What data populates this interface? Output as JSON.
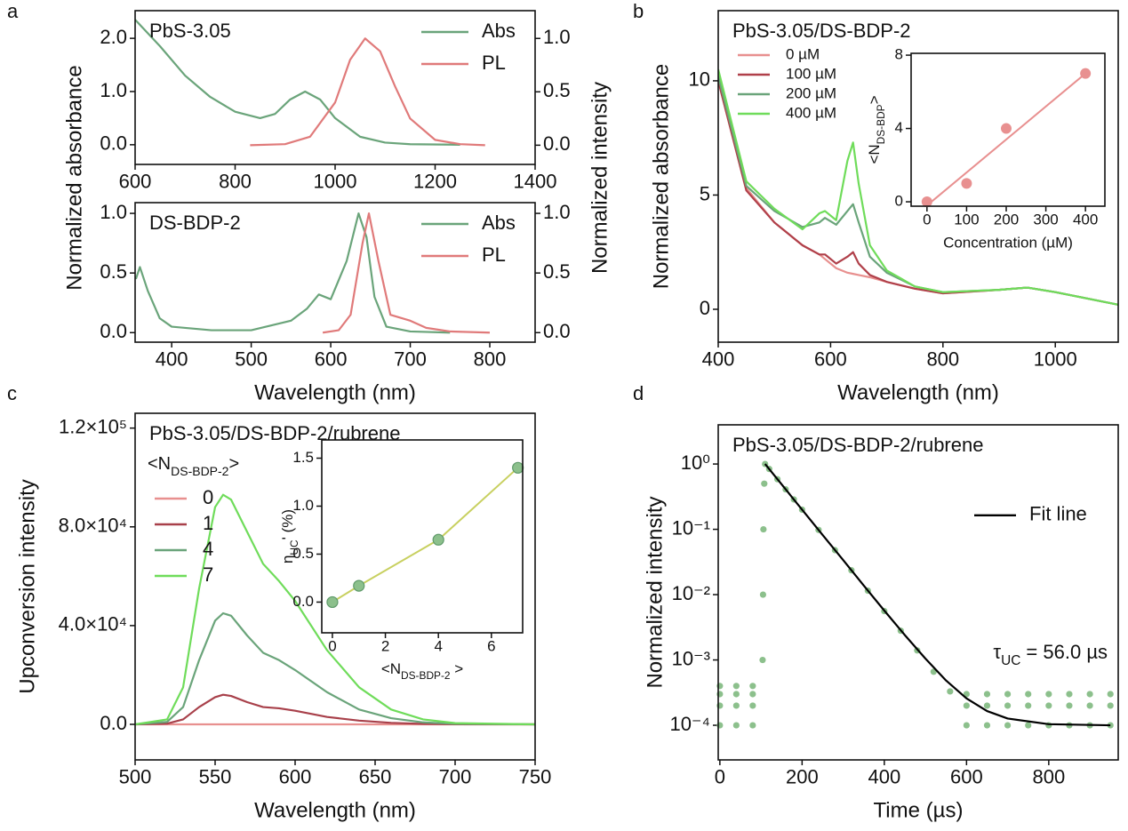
{
  "chart_data": [
    {
      "type": "line",
      "panel": "a",
      "label": "PbS-3.05",
      "ylabel": "Normalized absorbance",
      "y2label": "Normalized intensity",
      "xlim": [
        600,
        1400
      ],
      "xticks": [
        600,
        800,
        1000,
        1200,
        1400
      ],
      "ylim": [
        -0.37,
        2.52
      ],
      "yticks": [
        {
          "value": 0,
          "label": "0.0"
        },
        {
          "value": 1,
          "label": "1.0"
        },
        {
          "value": 2,
          "label": "2.0"
        }
      ],
      "y2lim": [
        -0.18,
        1.26
      ],
      "y2ticks": [
        {
          "value": 0,
          "label": "0.0"
        },
        0.5,
        {
          "value": 1,
          "label": "1.0"
        }
      ],
      "legend": "upper right",
      "series": [
        {
          "name": "Abs",
          "color": "#6aa47a",
          "x": [
            600,
            650,
            700,
            750,
            800,
            850,
            880,
            910,
            940,
            970,
            1000,
            1050,
            1100,
            1150,
            1250
          ],
          "values": [
            2.35,
            1.85,
            1.3,
            0.9,
            0.62,
            0.5,
            0.58,
            0.85,
            1.0,
            0.85,
            0.5,
            0.15,
            0.04,
            0.01,
            0.0
          ]
        },
        {
          "name": "PL",
          "color": "#e07a7a",
          "axis": "y2",
          "x": [
            830,
            900,
            950,
            1000,
            1030,
            1060,
            1090,
            1120,
            1150,
            1200,
            1250,
            1300
          ],
          "values": [
            0,
            0.01,
            0.08,
            0.4,
            0.8,
            1.0,
            0.88,
            0.55,
            0.25,
            0.05,
            0.01,
            0
          ]
        }
      ]
    },
    {
      "type": "line",
      "label": "DS-BDP-2",
      "xlabel": "Wavelength (nm)",
      "xlim": [
        354,
        857
      ],
      "xticks": [
        400,
        500,
        600,
        700,
        800
      ],
      "ylim": [
        -0.08,
        1.09
      ],
      "yticks": [
        {
          "value": 0,
          "label": "0.0"
        },
        0.5,
        {
          "value": 1,
          "label": "1.0"
        }
      ],
      "y2lim": [
        -0.08,
        1.09
      ],
      "y2ticks": [
        {
          "value": 0,
          "label": "0.0"
        },
        0.5,
        {
          "value": 1,
          "label": "1.0"
        }
      ],
      "legend": "upper right",
      "series": [
        {
          "name": "Abs",
          "color": "#6aa47a",
          "x": [
            355,
            360,
            370,
            385,
            400,
            450,
            500,
            550,
            570,
            585,
            600,
            620,
            635,
            645,
            655,
            670,
            700,
            750
          ],
          "values": [
            0.45,
            0.55,
            0.35,
            0.12,
            0.05,
            0.02,
            0.02,
            0.1,
            0.2,
            0.32,
            0.28,
            0.6,
            1.0,
            0.8,
            0.3,
            0.05,
            0.01,
            0
          ]
        },
        {
          "name": "PL",
          "color": "#e07a7a",
          "axis": "y2",
          "x": [
            590,
            610,
            625,
            640,
            648,
            660,
            675,
            700,
            720,
            750,
            800
          ],
          "values": [
            0,
            0.02,
            0.15,
            0.75,
            1.0,
            0.6,
            0.15,
            0.1,
            0.04,
            0.01,
            0
          ]
        }
      ]
    },
    {
      "type": "line",
      "panel": "b",
      "label": "PbS-3.05/DS-BDP-2",
      "xlabel": "Wavelength (nm)",
      "ylabel": "Normalized absorbance",
      "xlim": [
        400,
        1112
      ],
      "xticks": [
        400,
        600,
        800,
        1000
      ],
      "ylim": [
        -1.44,
        13.07
      ],
      "yticks": [
        0,
        5,
        10
      ],
      "legend": "upper left",
      "x": [
        400,
        450,
        500,
        550,
        580,
        590,
        610,
        630,
        640,
        650,
        670,
        700,
        750,
        800,
        900,
        950,
        1000,
        1112
      ],
      "series": [
        {
          "name": "0 µM",
          "color": "#e8908f",
          "values": [
            10,
            5.3,
            3.8,
            2.8,
            2.4,
            2.2,
            1.8,
            1.6,
            1.55,
            1.5,
            1.4,
            1.2,
            0.9,
            0.7,
            0.85,
            0.95,
            0.75,
            0.2
          ]
        },
        {
          "name": "100 µM",
          "color": "#b0404a",
          "values": [
            10,
            5.2,
            3.8,
            2.8,
            2.4,
            2.4,
            2.0,
            2.3,
            2.5,
            2.0,
            1.5,
            1.2,
            0.9,
            0.7,
            0.85,
            0.95,
            0.75,
            0.2
          ]
        },
        {
          "name": "200 µM",
          "color": "#6aa47a",
          "values": [
            10.2,
            5.4,
            4.3,
            3.6,
            3.8,
            4.0,
            3.7,
            4.3,
            4.6,
            3.8,
            2.3,
            1.6,
            1.0,
            0.75,
            0.85,
            0.95,
            0.75,
            0.2
          ]
        },
        {
          "name": "400 µM",
          "color": "#6fdc5a",
          "values": [
            10.5,
            5.6,
            4.4,
            3.5,
            4.2,
            4.3,
            3.9,
            6.5,
            7.3,
            5.5,
            2.8,
            1.7,
            1.0,
            0.75,
            0.85,
            0.95,
            0.75,
            0.2
          ]
        }
      ]
    },
    {
      "type": "scatter",
      "xlabel": "Concentration (µM)",
      "ylabel": [
        "<N",
        "DS-BDP",
        ">"
      ],
      "xlim": [
        -40,
        449
      ],
      "xticks": [
        0,
        100,
        200,
        300,
        400
      ],
      "ylim": [
        -0.24,
        8.1
      ],
      "yticks": [
        0,
        4,
        8
      ],
      "series": [
        {
          "color": "#e89090",
          "style": "line",
          "x": [
            0,
            400
          ],
          "values": [
            -0.2,
            7.0
          ]
        },
        {
          "color": "#e89090",
          "style": "markers",
          "x": [
            0,
            100,
            200,
            400
          ],
          "values": [
            0,
            1,
            4,
            7
          ]
        }
      ]
    },
    {
      "type": "line",
      "panel": "c",
      "label": "PbS-3.05/DS-BDP-2/rubrene",
      "legend_title": [
        "<N",
        "DS-BDP-2",
        ">"
      ],
      "xlabel": "Wavelength (nm)",
      "ylabel": "Upconversion intensity",
      "xlim": [
        500,
        750
      ],
      "xticks": [
        500,
        550,
        600,
        650,
        700,
        750
      ],
      "ylim": [
        -14400,
        126000
      ],
      "yticks": [
        {
          "value": 0,
          "label": "0.0"
        },
        {
          "value": 40000,
          "label": "4.0×10⁴"
        },
        {
          "value": 80000,
          "label": "8.0×10⁴"
        },
        {
          "value": 120000,
          "label": "1.2×10⁵"
        }
      ],
      "legend": "upper left",
      "x": [
        500,
        520,
        530,
        540,
        550,
        555,
        560,
        570,
        580,
        590,
        600,
        620,
        640,
        660,
        680,
        700,
        750
      ],
      "series": [
        {
          "name": "0",
          "color": "#e8908f",
          "values": [
            0,
            0,
            0,
            0,
            0,
            0,
            0,
            0,
            0,
            0,
            0,
            0,
            0,
            0,
            0,
            0,
            0
          ]
        },
        {
          "name": "1",
          "color": "#a8404a",
          "values": [
            0,
            300,
            2000,
            7000,
            11000,
            12000,
            11500,
            9000,
            7000,
            6500,
            5500,
            3000,
            1500,
            600,
            200,
            50,
            0
          ]
        },
        {
          "name": "4",
          "color": "#6aa47a",
          "values": [
            0,
            1000,
            7000,
            26000,
            42000,
            45000,
            44000,
            36000,
            29000,
            26000,
            22000,
            13000,
            6000,
            2500,
            800,
            200,
            0
          ]
        },
        {
          "name": "7",
          "color": "#6fdc5a",
          "values": [
            0,
            2000,
            15000,
            55000,
            88000,
            93000,
            91000,
            78000,
            65000,
            58000,
            50000,
            30000,
            15000,
            6000,
            2000,
            500,
            0
          ]
        }
      ]
    },
    {
      "type": "scatter",
      "xlabel": [
        "<N",
        "DS-BDP-2",
        " >"
      ],
      "ylabel": [
        "η",
        "UC",
        "' (%)"
      ],
      "xlim": [
        -0.4,
        7.18
      ],
      "xticks": [
        0,
        2,
        4,
        6
      ],
      "ylim": [
        -0.32,
        1.69
      ],
      "yticks": [
        {
          "value": 0,
          "label": "0.0"
        },
        0.5,
        {
          "value": 1,
          "label": "1.0"
        },
        1.5
      ],
      "series": [
        {
          "color": "#c8d060",
          "style": "line",
          "x": [
            0,
            1,
            4,
            7
          ],
          "values": [
            0,
            0.17,
            0.65,
            1.4
          ]
        },
        {
          "color": "#8cc08c",
          "style": "markers",
          "x": [
            0,
            1,
            4,
            7
          ],
          "values": [
            0,
            0.17,
            0.65,
            1.4
          ]
        }
      ]
    },
    {
      "type": "scatter",
      "panel": "d",
      "label": "PbS-3.05/DS-BDP-2/rubrene",
      "xlabel": "Time (µs)",
      "ylabel": "Normalized intensity",
      "annotation": [
        "τ",
        "UC",
        " = 56.0 µs"
      ],
      "yscale": "log",
      "xlim": [
        -4,
        969
      ],
      "xticks": [
        0,
        200,
        400,
        600,
        800
      ],
      "ylim": [
        2.95e-05,
        3.98
      ],
      "yticks": [
        {
          "value": 0.0001,
          "label": "10⁻⁴"
        },
        {
          "value": 0.001,
          "label": "10⁻³"
        },
        {
          "value": 0.01,
          "label": "10⁻²"
        },
        {
          "value": 0.1,
          "label": "10⁻¹"
        },
        {
          "value": 1,
          "label": "10⁰"
        }
      ],
      "legend": "center right",
      "series": [
        {
          "color": "#8cc08c",
          "style": "markers",
          "x": [
            0,
            0,
            0,
            0,
            40,
            40,
            40,
            40,
            80,
            80,
            80,
            80,
            104,
            105,
            106,
            108,
            110,
            120,
            140,
            160,
            180,
            200,
            240,
            280,
            320,
            360,
            400,
            440,
            480,
            520,
            560,
            600,
            600,
            600,
            650,
            650,
            650,
            700,
            700,
            700,
            750,
            750,
            750,
            800,
            800,
            800,
            850,
            850,
            850,
            900,
            900,
            900,
            950,
            950,
            950
          ],
          "values": [
            0.0001,
            0.0002,
            0.0003,
            0.0004,
            0.0001,
            0.0002,
            0.0003,
            0.0004,
            0.0001,
            0.0002,
            0.0003,
            0.0004,
            0.001,
            0.01,
            0.1,
            0.5,
            1.0,
            0.84,
            0.585,
            0.41,
            0.287,
            0.2,
            0.098,
            0.048,
            0.0236,
            0.0115,
            0.0056,
            0.0028,
            0.0014,
            0.00066,
            0.00033,
            0.0001,
            0.0002,
            0.0003,
            0.0001,
            0.0002,
            0.0003,
            0.0001,
            0.0002,
            0.0003,
            0.0001,
            0.0002,
            0.0003,
            0.0001,
            0.0002,
            0.0003,
            0.0001,
            0.0002,
            0.0003,
            0.0001,
            0.0002,
            0.0003,
            0.0001,
            0.0002,
            0.0003
          ]
        },
        {
          "name": "Fit line",
          "color": "#000000",
          "style": "line",
          "x": [
            110,
            150,
            200,
            250,
            300,
            350,
            400,
            450,
            500,
            550,
            600,
            650,
            700,
            800,
            950
          ],
          "values": [
            1.0,
            0.49,
            0.2,
            0.082,
            0.0338,
            0.0138,
            0.0057,
            0.0024,
            0.00105,
            0.000486,
            0.000258,
            0.000165,
            0.000127,
            0.000104,
            0.0001
          ]
        }
      ]
    }
  ]
}
